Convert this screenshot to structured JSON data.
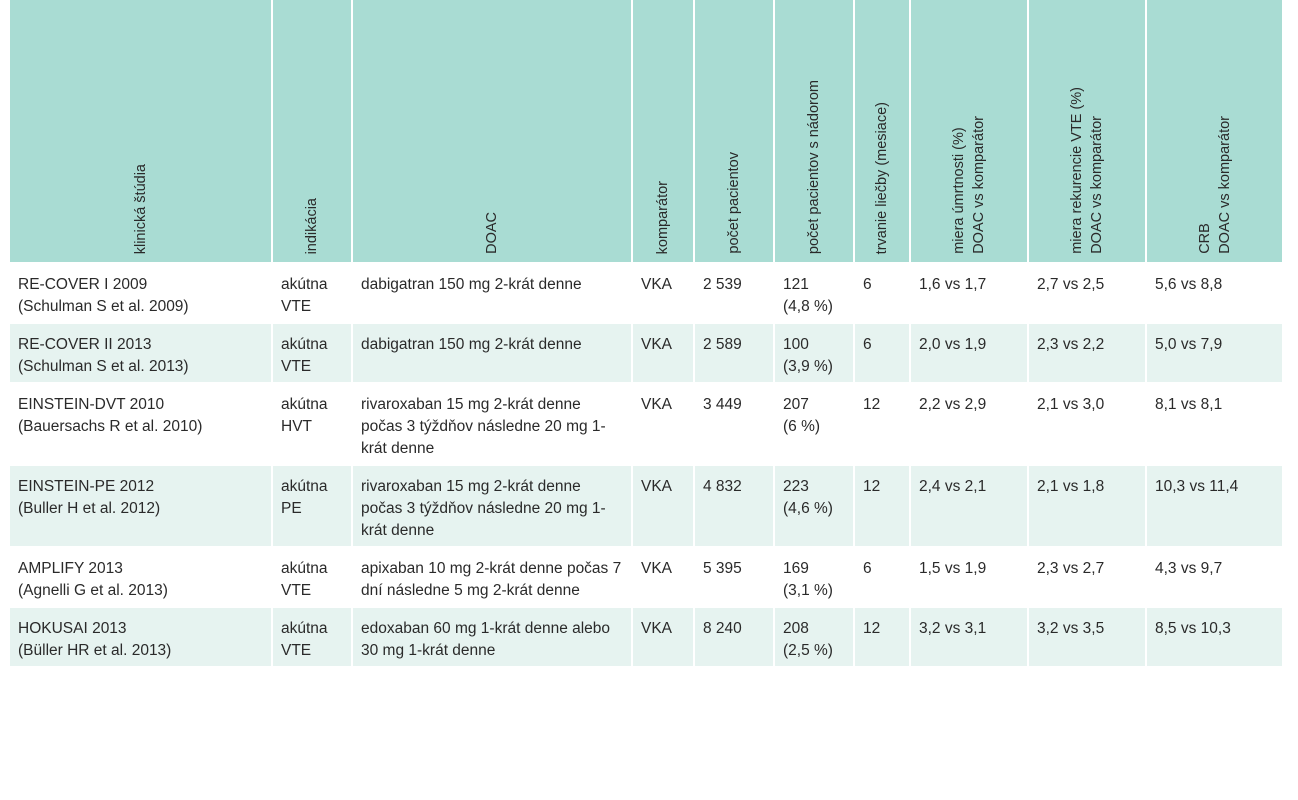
{
  "table": {
    "headers": [
      {
        "lines": [
          "klinická štúdia"
        ]
      },
      {
        "lines": [
          "indikácia"
        ]
      },
      {
        "lines": [
          "DOAC"
        ]
      },
      {
        "lines": [
          "komparátor"
        ]
      },
      {
        "lines": [
          "počet pacientov"
        ]
      },
      {
        "lines": [
          "počet pacientov s nádorom"
        ]
      },
      {
        "lines": [
          "trvanie liečby (mesiace)"
        ]
      },
      {
        "lines": [
          "miera úmrtnosti (%)",
          "DOAC vs komparátor"
        ]
      },
      {
        "lines": [
          "miera rekurencie VTE (%)",
          "DOAC vs komparátor"
        ]
      },
      {
        "lines": [
          "CRB",
          "DOAC vs komparátor"
        ]
      }
    ],
    "rows": [
      {
        "study": "RE-COVER I 2009",
        "reference": "(Schulman S et al. 2009)",
        "indication": [
          "akútna",
          "VTE"
        ],
        "doac": "dabigatran 150 mg 2-krát denne",
        "comparator": "VKA",
        "patients": "2 539",
        "cancer_patients": "121",
        "cancer_pct": "(4,8 %)",
        "duration": "6",
        "mortality": "1,6 vs 1,7",
        "recurrence": "2,7 vs 2,5",
        "crb": "5,6 vs 8,8"
      },
      {
        "study": "RE-COVER II 2013",
        "reference": "(Schulman S et al. 2013)",
        "indication": [
          "akútna",
          "VTE"
        ],
        "doac": "dabigatran 150 mg 2-krát denne",
        "comparator": "VKA",
        "patients": "2 589",
        "cancer_patients": "100",
        "cancer_pct": "(3,9 %)",
        "duration": "6",
        "mortality": "2,0 vs 1,9",
        "recurrence": "2,3 vs 2,2",
        "crb": "5,0 vs 7,9"
      },
      {
        "study": "EINSTEIN-DVT 2010",
        "reference": "(Bauersachs R et al. 2010)",
        "indication": [
          "akútna",
          "HVT"
        ],
        "doac": "rivaroxaban 15 mg 2-krát denne počas 3 týždňov následne 20 mg 1-krát denne",
        "comparator": "VKA",
        "patients": "3 449",
        "cancer_patients": "207",
        "cancer_pct": "(6 %)",
        "duration": "12",
        "mortality": "2,2 vs 2,9",
        "recurrence": "2,1 vs 3,0",
        "crb": "8,1 vs 8,1"
      },
      {
        "study": "EINSTEIN-PE 2012",
        "reference": "(Buller H et al. 2012)",
        "indication": [
          "akútna",
          "PE"
        ],
        "doac": "rivaroxaban 15 mg 2-krát denne počas 3 týždňov následne 20 mg 1-krát denne",
        "comparator": "VKA",
        "patients": "4 832",
        "cancer_patients": "223",
        "cancer_pct": "(4,6 %)",
        "duration": "12",
        "mortality": "2,4 vs 2,1",
        "recurrence": "2,1 vs 1,8",
        "crb": "10,3 vs 11,4"
      },
      {
        "study": "AMPLIFY 2013",
        "reference": "(Agnelli G et al. 2013)",
        "indication": [
          "akútna",
          "VTE"
        ],
        "doac": "apixaban 10 mg 2-krát denne počas 7 dní následne 5 mg 2-krát denne",
        "comparator": "VKA",
        "patients": "5 395",
        "cancer_patients": "169",
        "cancer_pct": "(3,1 %)",
        "duration": "6",
        "mortality": "1,5 vs 1,9",
        "recurrence": "2,3 vs 2,7",
        "crb": "4,3 vs 9,7"
      },
      {
        "study": "HOKUSAI 2013",
        "reference": "(Büller HR et al. 2013)",
        "indication": [
          "akútna",
          "VTE"
        ],
        "doac": "edoxaban 60 mg 1-krát denne alebo 30 mg 1-krát denne",
        "comparator": "VKA",
        "patients": "8 240",
        "cancer_patients": "208",
        "cancer_pct": "(2,5 %)",
        "duration": "12",
        "mortality": "3,2 vs 3,1",
        "recurrence": "3,2 vs 3,5",
        "crb": "8,5 vs 10,3"
      }
    ]
  },
  "colors": {
    "header_bg": "#a9dcd3",
    "row_alt_bg": "#e6f3f0",
    "text": "#2a2a2a"
  }
}
